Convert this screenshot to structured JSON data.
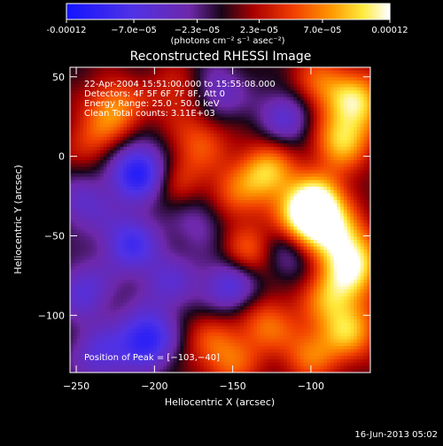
{
  "colorbar": {
    "tick_labels": [
      "-0.00012",
      "−7.0e−05",
      "−2.3e−05",
      "2.3e−05",
      "7.0e−05",
      "0.00012"
    ],
    "tick_values": [
      -0.00012,
      -7e-05,
      -2.3e-05,
      2.3e-05,
      7e-05,
      0.00012
    ],
    "unit_label": "(photons cm⁻² s⁻¹ asec⁻²)"
  },
  "chart_data": {
    "type": "heatmap",
    "title": "Reconstructed RHESSI Image",
    "xlabel": "Heliocentric X (arcsec)",
    "ylabel": "Heliocentric Y (arcsec)",
    "xlim": [
      -254,
      -62
    ],
    "ylim": [
      -136,
      56
    ],
    "xticks": [
      -250,
      -200,
      -150,
      -100
    ],
    "xtick_labels": [
      "−250",
      "−200",
      "−150",
      "−100"
    ],
    "yticks": [
      50,
      0,
      -50,
      -100
    ],
    "ytick_labels": [
      "50",
      "0",
      "−50",
      "−100"
    ],
    "zlim": [
      -0.00012,
      0.00012
    ],
    "colormap": "rainbow-blue-purple-red-yellow-white",
    "annotations": [
      "22-Apr-2004 15:51:00.000 to 15:55:08.000",
      "Detectors: 4F 5F 6F 7F 8F, Att 0",
      "Energy Range: 25.0 - 50.0 keV",
      "Clean    Total counts: 3.11E+03"
    ],
    "peak_label": "Position of Peak = [−103,−40]",
    "peak": [
      -103,
      -40
    ],
    "blobs": [
      {
        "x": -103,
        "y": -40,
        "z": 0.00012
      },
      {
        "x": -95,
        "y": -28,
        "z": 9e-05
      },
      {
        "x": -82,
        "y": -52,
        "z": 8e-05
      },
      {
        "x": -72,
        "y": -70,
        "z": 9e-05
      },
      {
        "x": -88,
        "y": -88,
        "z": 7e-05
      },
      {
        "x": -75,
        "y": -110,
        "z": 8e-05
      },
      {
        "x": -100,
        "y": -125,
        "z": 6e-05
      },
      {
        "x": -128,
        "y": -10,
        "z": 9e-05
      },
      {
        "x": -140,
        "y": -62,
        "z": 7e-05
      },
      {
        "x": -128,
        "y": -105,
        "z": 6e-05
      },
      {
        "x": -150,
        "y": -25,
        "z": 5e-05
      },
      {
        "x": -170,
        "y": 10,
        "z": 5e-05
      },
      {
        "x": -185,
        "y": -15,
        "z": 4e-05
      },
      {
        "x": -80,
        "y": 10,
        "z": 9e-05
      },
      {
        "x": -70,
        "y": 35,
        "z": 9e-05
      },
      {
        "x": -95,
        "y": 45,
        "z": 6e-05
      },
      {
        "x": -225,
        "y": 30,
        "z": 7e-05
      },
      {
        "x": -240,
        "y": 10,
        "z": 4e-05
      },
      {
        "x": -185,
        "y": 40,
        "z": 4e-05
      },
      {
        "x": -165,
        "y": -115,
        "z": 4e-05
      },
      {
        "x": -150,
        "y": -130,
        "z": 5e-05
      },
      {
        "x": -210,
        "y": -10,
        "z": -0.00011
      },
      {
        "x": -215,
        "y": -55,
        "z": -8e-05
      },
      {
        "x": -205,
        "y": -115,
        "z": -0.0001
      },
      {
        "x": -245,
        "y": -85,
        "z": -6e-05
      },
      {
        "x": -235,
        "y": -125,
        "z": -6e-05
      },
      {
        "x": -150,
        "y": -80,
        "z": -8e-05
      },
      {
        "x": -190,
        "y": -80,
        "z": -5e-05
      },
      {
        "x": -115,
        "y": -60,
        "z": -5e-05
      },
      {
        "x": -115,
        "y": 25,
        "z": -6e-05
      },
      {
        "x": -160,
        "y": 40,
        "z": -5e-05
      },
      {
        "x": -245,
        "y": -30,
        "z": -5e-05
      },
      {
        "x": -170,
        "y": -40,
        "z": -4e-05
      }
    ]
  },
  "footer": {
    "timestamp": "16-Jun-2013 05:02"
  }
}
